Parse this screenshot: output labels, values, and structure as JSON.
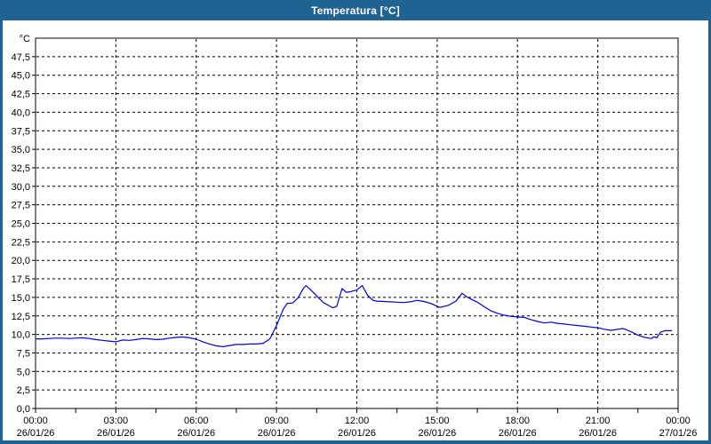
{
  "window": {
    "title": "Temperatura [°C]"
  },
  "colors": {
    "titlebar_bg": "#1f6392",
    "border": "#1f6392",
    "plot_bg": "#ffffff",
    "frame": "#000000",
    "grid": "#000000",
    "tick_text": "#000000",
    "series_line": "#0000cd"
  },
  "chart_data": {
    "type": "line",
    "title": "Temperatura [°C]",
    "unit_label": "°C",
    "ylim": [
      0,
      50
    ],
    "ytick_step": 2.5,
    "ytick_labels": [
      "0,0",
      "2,5",
      "5,0",
      "7,5",
      "10,0",
      "12,5",
      "15,0",
      "17,5",
      "20,0",
      "22,5",
      "25,0",
      "27,5",
      "30,0",
      "32,5",
      "35,0",
      "37,5",
      "40,0",
      "42,5",
      "45,0",
      "47,5"
    ],
    "x_hours_range": [
      0,
      24
    ],
    "xtick_major_step_hours": 3,
    "xtick_minor_step_hours": 1.5,
    "grid": "dashed",
    "legend_position": "none",
    "x_axis_labels": [
      {
        "time": "00:00",
        "date": "26/01/26"
      },
      {
        "time": "03:00",
        "date": "26/01/26"
      },
      {
        "time": "06:00",
        "date": "26/01/26"
      },
      {
        "time": "09:00",
        "date": "26/01/26"
      },
      {
        "time": "12:00",
        "date": "26/01/26"
      },
      {
        "time": "15:00",
        "date": "26/01/26"
      },
      {
        "time": "18:00",
        "date": "26/01/26"
      },
      {
        "time": "21:00",
        "date": "26/01/26"
      },
      {
        "time": "00:00",
        "date": "27/01/26"
      }
    ],
    "series": [
      {
        "name": "Temperatura",
        "color": "#0000cd",
        "points": [
          [
            0,
            9.4
          ],
          [
            0.25,
            9.4
          ],
          [
            0.5,
            9.45
          ],
          [
            0.75,
            9.5
          ],
          [
            1,
            9.5
          ],
          [
            1.25,
            9.45
          ],
          [
            1.5,
            9.5
          ],
          [
            1.75,
            9.55
          ],
          [
            2,
            9.45
          ],
          [
            2.25,
            9.3
          ],
          [
            2.5,
            9.2
          ],
          [
            2.75,
            9.1
          ],
          [
            3,
            9.0
          ],
          [
            3.25,
            9.25
          ],
          [
            3.5,
            9.2
          ],
          [
            3.75,
            9.3
          ],
          [
            4,
            9.45
          ],
          [
            4.25,
            9.4
          ],
          [
            4.5,
            9.3
          ],
          [
            4.75,
            9.35
          ],
          [
            5,
            9.5
          ],
          [
            5.25,
            9.6
          ],
          [
            5.5,
            9.65
          ],
          [
            5.75,
            9.55
          ],
          [
            6,
            9.35
          ],
          [
            6.25,
            9.0
          ],
          [
            6.5,
            8.7
          ],
          [
            6.75,
            8.45
          ],
          [
            7,
            8.35
          ],
          [
            7.25,
            8.5
          ],
          [
            7.5,
            8.65
          ],
          [
            7.75,
            8.65
          ],
          [
            8,
            8.7
          ],
          [
            8.25,
            8.7
          ],
          [
            8.5,
            8.8
          ],
          [
            8.75,
            9.4
          ],
          [
            9,
            11.2
          ],
          [
            9.25,
            13.4
          ],
          [
            9.4,
            14.2
          ],
          [
            9.6,
            14.25
          ],
          [
            9.8,
            14.9
          ],
          [
            10,
            16.2
          ],
          [
            10.1,
            16.6
          ],
          [
            10.25,
            16.1
          ],
          [
            10.5,
            15.2
          ],
          [
            10.75,
            14.3
          ],
          [
            11,
            13.8
          ],
          [
            11.1,
            13.6
          ],
          [
            11.25,
            13.8
          ],
          [
            11.45,
            16.2
          ],
          [
            11.6,
            15.7
          ],
          [
            11.75,
            15.75
          ],
          [
            12,
            16.0
          ],
          [
            12.2,
            16.6
          ],
          [
            12.4,
            15.3
          ],
          [
            12.6,
            14.6
          ],
          [
            12.75,
            14.5
          ],
          [
            13,
            14.45
          ],
          [
            13.25,
            14.4
          ],
          [
            13.5,
            14.35
          ],
          [
            13.75,
            14.3
          ],
          [
            14,
            14.4
          ],
          [
            14.25,
            14.6
          ],
          [
            14.5,
            14.45
          ],
          [
            14.75,
            14.2
          ],
          [
            15,
            13.8
          ],
          [
            15.1,
            13.65
          ],
          [
            15.4,
            13.9
          ],
          [
            15.7,
            14.5
          ],
          [
            15.93,
            15.55
          ],
          [
            16.1,
            15.1
          ],
          [
            16.25,
            14.8
          ],
          [
            16.5,
            14.35
          ],
          [
            16.75,
            13.75
          ],
          [
            17,
            13.2
          ],
          [
            17.25,
            12.85
          ],
          [
            17.5,
            12.6
          ],
          [
            17.75,
            12.45
          ],
          [
            18,
            12.35
          ],
          [
            18.25,
            12.3
          ],
          [
            18.5,
            12.0
          ],
          [
            18.75,
            11.75
          ],
          [
            19,
            11.55
          ],
          [
            19.25,
            11.65
          ],
          [
            19.5,
            11.5
          ],
          [
            19.75,
            11.4
          ],
          [
            20,
            11.3
          ],
          [
            20.25,
            11.2
          ],
          [
            20.5,
            11.1
          ],
          [
            20.75,
            11.0
          ],
          [
            21,
            10.9
          ],
          [
            21.25,
            10.7
          ],
          [
            21.5,
            10.55
          ],
          [
            21.75,
            10.7
          ],
          [
            21.95,
            10.8
          ],
          [
            22.25,
            10.35
          ],
          [
            22.5,
            9.9
          ],
          [
            22.75,
            9.6
          ],
          [
            23,
            9.45
          ],
          [
            23.1,
            9.7
          ],
          [
            23.2,
            9.55
          ],
          [
            23.35,
            10.3
          ],
          [
            23.5,
            10.5
          ],
          [
            23.75,
            10.5
          ]
        ]
      }
    ]
  }
}
